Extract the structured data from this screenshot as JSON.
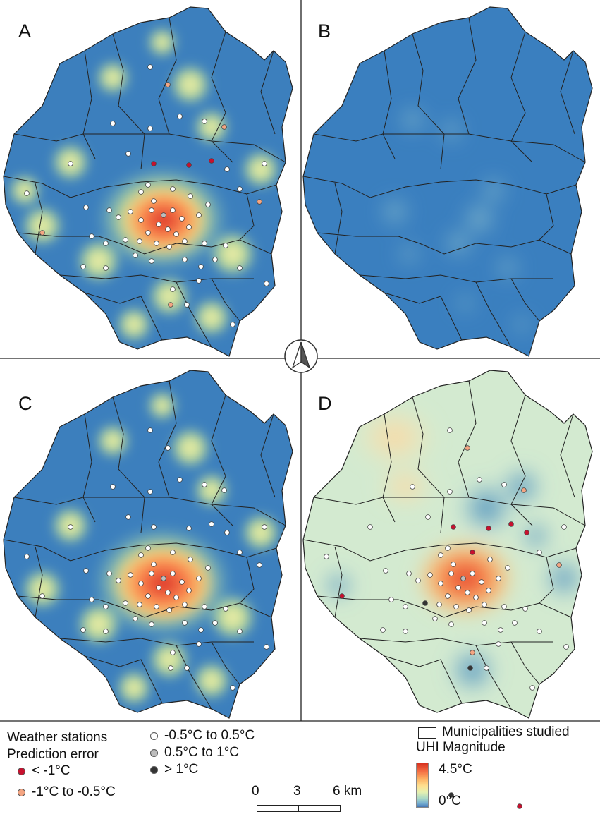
{
  "panels": [
    {
      "letter": "A",
      "style": "temperature-map"
    },
    {
      "letter": "B",
      "style": "error-surface"
    },
    {
      "letter": "C",
      "style": "temperature-map"
    },
    {
      "letter": "D",
      "style": "uhi-interpolation"
    }
  ],
  "north_arrow": {
    "icon": "north-arrow-icon"
  },
  "legend": {
    "stations_title": "Weather stations",
    "error_title": "Prediction error",
    "categories": [
      {
        "label": "< -1°C",
        "color": "#c8102e"
      },
      {
        "label": "-1°C to -0.5°C",
        "color": "#f4a582"
      },
      {
        "label": "-0.5°C to 0.5°C",
        "color": "#ffffff"
      },
      {
        "label": "0.5°C to 1°C",
        "color": "#bdbdbd"
      },
      {
        "label": "> 1°C",
        "color": "#333333"
      }
    ],
    "municipalities_label": "Municipalities studied",
    "uhi_title": "UHI Magnitude",
    "uhi_max": "4.5°C",
    "uhi_min": "0°C",
    "ramp_colors": [
      "#d7301f",
      "#fdae61",
      "#fee090",
      "#abd9c5",
      "#4575b4"
    ]
  },
  "scale_bar": {
    "ticks": [
      "0",
      "3",
      "6 km"
    ]
  }
}
